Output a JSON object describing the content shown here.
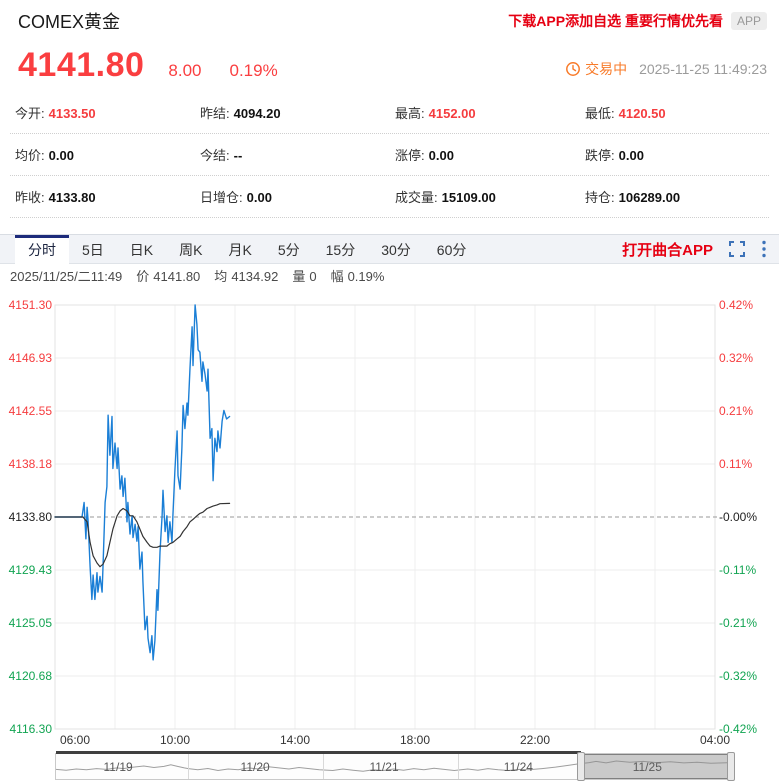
{
  "header": {
    "title": "COMEX黄金",
    "promo": "下载APP添加自选 重要行情优先看",
    "app_badge": "APP",
    "price": "4141.80",
    "change": "8.00",
    "change_pct": "0.19%",
    "status": "交易中",
    "timestamp": "2025-11-25 11:49:23"
  },
  "colors": {
    "up_red": "#f53c3e",
    "down_green": "#12a452",
    "price_line": "#1b7fd6",
    "avg_line": "#333333",
    "accent_orange": "#f87b2a",
    "promo_red": "#e60012",
    "tab_active_border": "#1d2b7b",
    "icon_blue": "#3d72b8"
  },
  "stats": {
    "rows": [
      [
        {
          "label": "今开:",
          "value": "4133.50",
          "value_color": "#f53c3e"
        },
        {
          "label": "昨结:",
          "value": "4094.20",
          "value_color": "#111111"
        },
        {
          "label": "最高:",
          "value": "4152.00",
          "value_color": "#f53c3e"
        },
        {
          "label": "最低:",
          "value": "4120.50",
          "value_color": "#f53c3e"
        }
      ],
      [
        {
          "label": "均价:",
          "value": "0.00",
          "value_color": "#111111"
        },
        {
          "label": "今结:",
          "value": "--",
          "value_color": "#111111"
        },
        {
          "label": "涨停:",
          "value": "0.00",
          "value_color": "#111111"
        },
        {
          "label": "跌停:",
          "value": "0.00",
          "value_color": "#111111"
        }
      ],
      [
        {
          "label": "昨收:",
          "value": "4133.80",
          "value_color": "#111111"
        },
        {
          "label": "日增仓:",
          "value": "0.00",
          "value_color": "#111111"
        },
        {
          "label": "成交量:",
          "value": "15109.00",
          "value_color": "#111111"
        },
        {
          "label": "持仓:",
          "value": "106289.00",
          "value_color": "#111111"
        }
      ]
    ]
  },
  "tabs": {
    "items": [
      {
        "label": "分时",
        "active": true
      },
      {
        "label": "5日",
        "active": false
      },
      {
        "label": "日K",
        "active": false
      },
      {
        "label": "周K",
        "active": false
      },
      {
        "label": "月K",
        "active": false
      },
      {
        "label": "5分",
        "active": false
      },
      {
        "label": "15分",
        "active": false
      },
      {
        "label": "30分",
        "active": false
      },
      {
        "label": "60分",
        "active": false
      }
    ],
    "open_app_label": "打开曲合APP"
  },
  "info_line": {
    "datetime": "2025/11/25/二11:49",
    "items": [
      {
        "label": "价",
        "value": "4141.80"
      },
      {
        "label": "均",
        "value": "4134.92"
      },
      {
        "label": "量",
        "value": "0"
      },
      {
        "label": "幅",
        "value": "0.19%"
      }
    ]
  },
  "chart_data": {
    "type": "line",
    "title": "COMEX黄金 分时图",
    "x_axis": {
      "start_hour": 6,
      "end_hour": 28,
      "tick_labels": [
        "06:00",
        "10:00",
        "14:00",
        "18:00",
        "22:00",
        "04:00"
      ],
      "tick_hours": [
        6,
        10,
        14,
        18,
        22,
        28
      ],
      "gridline_hours": [
        8,
        10,
        12,
        14,
        16,
        18,
        20,
        22,
        24,
        26
      ]
    },
    "y_axis": {
      "min": 4116.3,
      "max": 4151.3,
      "baseline": 4133.8,
      "left_labels": [
        {
          "text": "4151.30",
          "color": "#f53c3e"
        },
        {
          "text": "4146.93",
          "color": "#f53c3e"
        },
        {
          "text": "4142.55",
          "color": "#f53c3e"
        },
        {
          "text": "4138.18",
          "color": "#f53c3e"
        },
        {
          "text": "4133.80",
          "color": "#222222"
        },
        {
          "text": "4129.43",
          "color": "#12a452"
        },
        {
          "text": "4125.05",
          "color": "#12a452"
        },
        {
          "text": "4120.68",
          "color": "#12a452"
        },
        {
          "text": "4116.30",
          "color": "#12a452"
        }
      ],
      "right_labels": [
        {
          "text": "0.42%",
          "color": "#f53c3e"
        },
        {
          "text": "0.32%",
          "color": "#f53c3e"
        },
        {
          "text": "0.21%",
          "color": "#f53c3e"
        },
        {
          "text": "0.11%",
          "color": "#f53c3e"
        },
        {
          "text": "-0.00%",
          "color": "#222222"
        },
        {
          "text": "-0.11%",
          "color": "#12a452"
        },
        {
          "text": "-0.21%",
          "color": "#12a452"
        },
        {
          "text": "-0.32%",
          "color": "#12a452"
        },
        {
          "text": "-0.42%",
          "color": "#12a452"
        }
      ]
    },
    "series": [
      {
        "name": "price",
        "color": "#1b7fd6",
        "width": 1.4,
        "points": [
          [
            6.0,
            4133.8
          ],
          [
            6.9,
            4133.8
          ],
          [
            6.97,
            4135.0
          ],
          [
            7.03,
            4132.0
          ],
          [
            7.07,
            4134.6
          ],
          [
            7.1,
            4133.6
          ],
          [
            7.17,
            4129.7
          ],
          [
            7.23,
            4127.0
          ],
          [
            7.27,
            4129.0
          ],
          [
            7.33,
            4127.0
          ],
          [
            7.4,
            4129.2
          ],
          [
            7.43,
            4127.6
          ],
          [
            7.5,
            4128.9
          ],
          [
            7.57,
            4127.6
          ],
          [
            7.6,
            4129.7
          ],
          [
            7.67,
            4135.0
          ],
          [
            7.73,
            4136.3
          ],
          [
            7.77,
            4142.2
          ],
          [
            7.83,
            4138.9
          ],
          [
            7.9,
            4142.1
          ],
          [
            7.93,
            4137.8
          ],
          [
            8.0,
            4139.9
          ],
          [
            8.07,
            4137.8
          ],
          [
            8.1,
            4139.5
          ],
          [
            8.17,
            4136.1
          ],
          [
            8.23,
            4137.2
          ],
          [
            8.27,
            4135.5
          ],
          [
            8.33,
            4137.0
          ],
          [
            8.4,
            4133.4
          ],
          [
            8.43,
            4135.0
          ],
          [
            8.5,
            4132.4
          ],
          [
            8.57,
            4133.9
          ],
          [
            8.6,
            4132.1
          ],
          [
            8.67,
            4133.2
          ],
          [
            8.73,
            4131.8
          ],
          [
            8.77,
            4133.0
          ],
          [
            8.83,
            4129.5
          ],
          [
            8.9,
            4130.9
          ],
          [
            8.93,
            4128.5
          ],
          [
            9.0,
            4124.5
          ],
          [
            9.07,
            4125.6
          ],
          [
            9.1,
            4123.8
          ],
          [
            9.17,
            4122.6
          ],
          [
            9.23,
            4124.0
          ],
          [
            9.27,
            4122.0
          ],
          [
            9.33,
            4123.6
          ],
          [
            9.4,
            4127.8
          ],
          [
            9.43,
            4126.1
          ],
          [
            9.5,
            4130.9
          ],
          [
            9.57,
            4133.9
          ],
          [
            9.6,
            4136.0
          ],
          [
            9.67,
            4132.6
          ],
          [
            9.73,
            4133.9
          ],
          [
            9.77,
            4131.7
          ],
          [
            9.83,
            4133.4
          ],
          [
            9.9,
            4131.7
          ],
          [
            9.93,
            4133.9
          ],
          [
            10.0,
            4137.8
          ],
          [
            10.07,
            4140.9
          ],
          [
            10.1,
            4137.2
          ],
          [
            10.17,
            4136.1
          ],
          [
            10.23,
            4139.5
          ],
          [
            10.27,
            4143.0
          ],
          [
            10.33,
            4141.1
          ],
          [
            10.4,
            4143.2
          ],
          [
            10.43,
            4142.2
          ],
          [
            10.5,
            4146.1
          ],
          [
            10.57,
            4149.5
          ],
          [
            10.6,
            4146.3
          ],
          [
            10.67,
            4151.3
          ],
          [
            10.73,
            4149.7
          ],
          [
            10.77,
            4147.6
          ],
          [
            10.83,
            4147.4
          ],
          [
            10.9,
            4145.0
          ],
          [
            10.93,
            4146.6
          ],
          [
            11.0,
            4145.6
          ],
          [
            11.07,
            4144.2
          ],
          [
            11.1,
            4146.0
          ],
          [
            11.17,
            4140.3
          ],
          [
            11.23,
            4141.1
          ],
          [
            11.27,
            4136.8
          ],
          [
            11.33,
            4140.3
          ],
          [
            11.4,
            4139.2
          ],
          [
            11.43,
            4140.9
          ],
          [
            11.5,
            4139.5
          ],
          [
            11.57,
            4141.7
          ],
          [
            11.63,
            4142.6
          ],
          [
            11.72,
            4141.9
          ],
          [
            11.82,
            4142.1
          ]
        ]
      },
      {
        "name": "average",
        "color": "#333333",
        "width": 1.2,
        "points": [
          [
            6.0,
            4133.8
          ],
          [
            6.93,
            4133.8
          ],
          [
            7.07,
            4133.4
          ],
          [
            7.17,
            4131.7
          ],
          [
            7.27,
            4130.6
          ],
          [
            7.4,
            4130.0
          ],
          [
            7.5,
            4129.7
          ],
          [
            7.6,
            4129.9
          ],
          [
            7.73,
            4130.6
          ],
          [
            7.83,
            4131.7
          ],
          [
            7.93,
            4132.8
          ],
          [
            8.07,
            4133.9
          ],
          [
            8.17,
            4134.3
          ],
          [
            8.27,
            4134.5
          ],
          [
            8.4,
            4134.3
          ],
          [
            8.5,
            4133.9
          ],
          [
            8.6,
            4133.9
          ],
          [
            8.73,
            4133.4
          ],
          [
            8.83,
            4132.8
          ],
          [
            8.93,
            4132.2
          ],
          [
            9.07,
            4131.7
          ],
          [
            9.17,
            4131.4
          ],
          [
            9.27,
            4131.3
          ],
          [
            9.4,
            4131.3
          ],
          [
            9.5,
            4131.4
          ],
          [
            9.6,
            4131.4
          ],
          [
            9.73,
            4131.4
          ],
          [
            9.83,
            4131.6
          ],
          [
            9.93,
            4131.7
          ],
          [
            10.07,
            4132.0
          ],
          [
            10.17,
            4132.2
          ],
          [
            10.27,
            4132.6
          ],
          [
            10.4,
            4133.0
          ],
          [
            10.5,
            4133.4
          ],
          [
            10.6,
            4133.6
          ],
          [
            10.73,
            4133.9
          ],
          [
            10.83,
            4134.1
          ],
          [
            10.93,
            4134.2
          ],
          [
            11.07,
            4134.5
          ],
          [
            11.17,
            4134.6
          ],
          [
            11.27,
            4134.7
          ],
          [
            11.4,
            4134.8
          ],
          [
            11.5,
            4134.9
          ],
          [
            11.82,
            4134.92
          ]
        ]
      }
    ]
  },
  "navigator": {
    "dates": [
      "11/19",
      "11/20",
      "11/21",
      "11/24",
      "11/25"
    ],
    "date_centers": [
      0.092,
      0.295,
      0.486,
      0.685,
      0.876
    ],
    "dividers": [
      0.196,
      0.395,
      0.595,
      0.778
    ],
    "selection": [
      0.778,
      1.0
    ],
    "sparkline": [
      [
        0,
        0.6
      ],
      [
        0.015,
        0.64
      ],
      [
        0.03,
        0.58
      ],
      [
        0.045,
        0.62
      ],
      [
        0.06,
        0.56
      ],
      [
        0.075,
        0.6
      ],
      [
        0.09,
        0.52
      ],
      [
        0.1,
        0.56
      ],
      [
        0.115,
        0.48
      ],
      [
        0.13,
        0.42
      ],
      [
        0.145,
        0.5
      ],
      [
        0.16,
        0.44
      ],
      [
        0.17,
        0.36
      ],
      [
        0.18,
        0.44
      ],
      [
        0.19,
        0.52
      ],
      [
        0.196,
        0.56
      ],
      [
        0.21,
        0.62
      ],
      [
        0.225,
        0.55
      ],
      [
        0.24,
        0.66
      ],
      [
        0.255,
        0.58
      ],
      [
        0.27,
        0.62
      ],
      [
        0.285,
        0.52
      ],
      [
        0.3,
        0.58
      ],
      [
        0.315,
        0.46
      ],
      [
        0.33,
        0.52
      ],
      [
        0.345,
        0.58
      ],
      [
        0.36,
        0.5
      ],
      [
        0.375,
        0.56
      ],
      [
        0.39,
        0.62
      ],
      [
        0.41,
        0.66
      ],
      [
        0.425,
        0.58
      ],
      [
        0.44,
        0.64
      ],
      [
        0.455,
        0.7
      ],
      [
        0.47,
        0.62
      ],
      [
        0.485,
        0.66
      ],
      [
        0.5,
        0.58
      ],
      [
        0.515,
        0.64
      ],
      [
        0.53,
        0.56
      ],
      [
        0.545,
        0.62
      ],
      [
        0.56,
        0.54
      ],
      [
        0.575,
        0.6
      ],
      [
        0.59,
        0.66
      ],
      [
        0.61,
        0.58
      ],
      [
        0.625,
        0.64
      ],
      [
        0.64,
        0.56
      ],
      [
        0.655,
        0.62
      ],
      [
        0.67,
        0.66
      ],
      [
        0.685,
        0.6
      ],
      [
        0.7,
        0.62
      ],
      [
        0.72,
        0.56
      ],
      [
        0.74,
        0.48
      ],
      [
        0.76,
        0.38
      ],
      [
        0.775,
        0.3
      ],
      [
        0.79,
        0.24
      ],
      [
        0.8,
        0.18
      ],
      [
        0.815,
        0.26
      ],
      [
        0.83,
        0.16
      ],
      [
        0.85,
        0.22
      ],
      [
        0.87,
        0.18
      ],
      [
        0.89,
        0.24
      ],
      [
        0.91,
        0.2
      ],
      [
        0.93,
        0.26
      ],
      [
        0.95,
        0.22
      ],
      [
        0.97,
        0.28
      ],
      [
        1,
        0.24
      ]
    ]
  }
}
